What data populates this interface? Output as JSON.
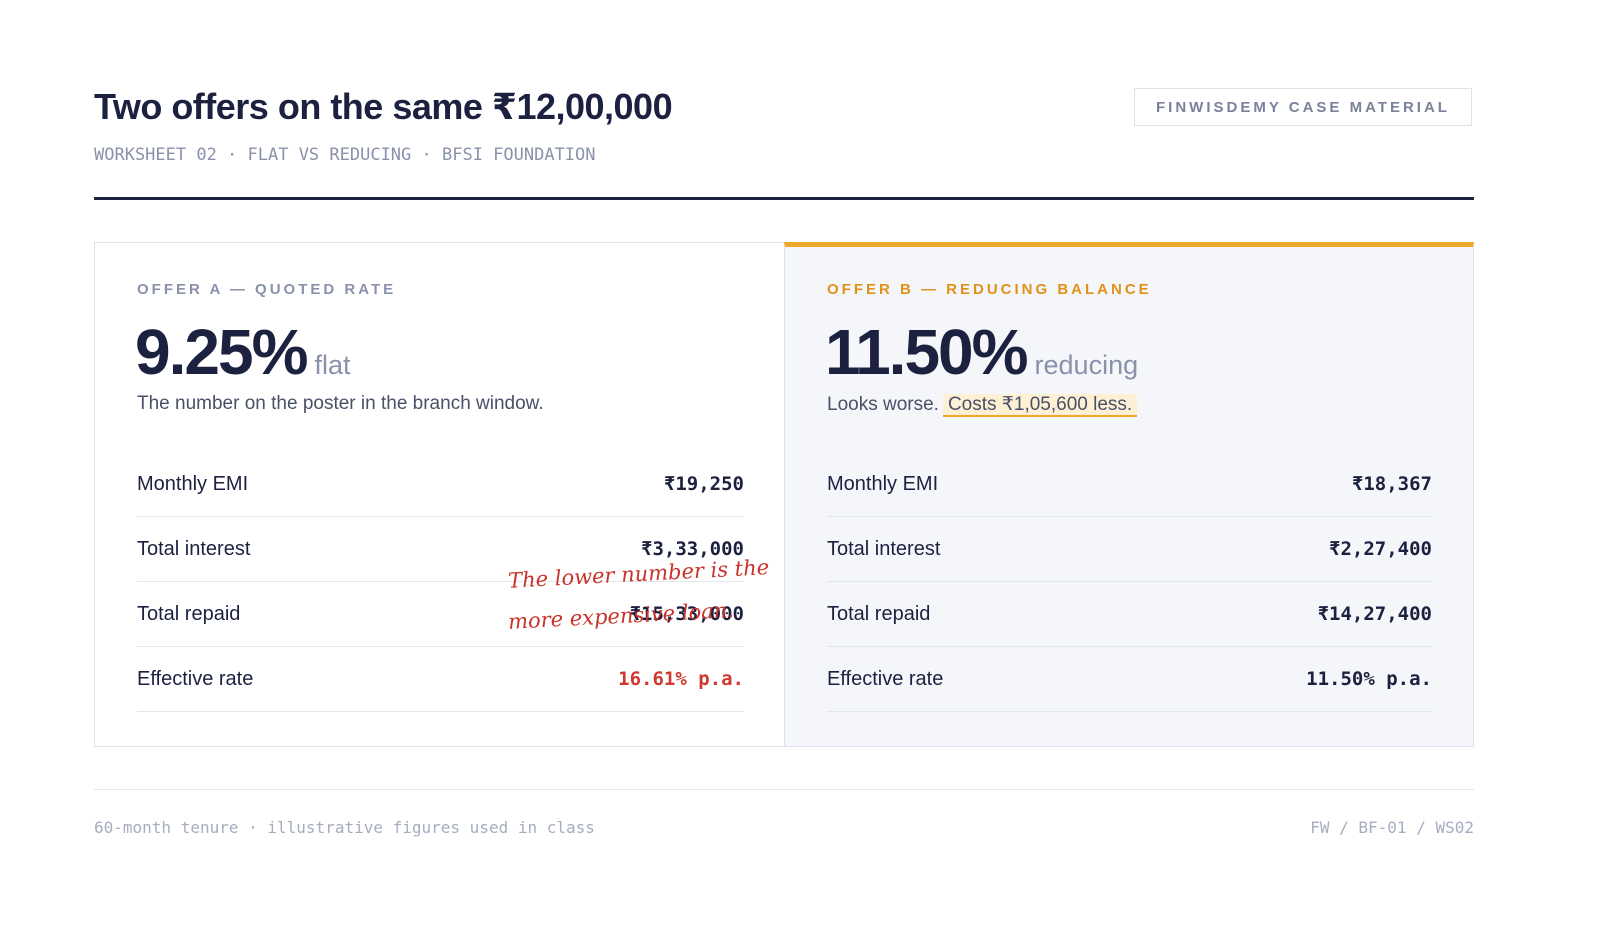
{
  "header": {
    "title": "Two offers on the same ₹12,00,000",
    "subtitle": "WORKSHEET 02 · FLAT VS REDUCING · BFSI FOUNDATION",
    "badge": "FINWISDEMY CASE MATERIAL"
  },
  "offers": [
    {
      "label": "OFFER A — QUOTED RATE",
      "rate": "9.25%",
      "rate_unit": "flat",
      "note": "The number on the poster in the branch window.",
      "rows": [
        {
          "label": "Monthly EMI",
          "value": "₹19,250"
        },
        {
          "label": "Total interest",
          "value": "₹3,33,000"
        },
        {
          "label": "Total repaid",
          "value": "₹15,33,000"
        },
        {
          "label": "Effective rate",
          "value": "16.61% p.a."
        }
      ]
    },
    {
      "label": "OFFER B — REDUCING BALANCE",
      "rate": "11.50%",
      "rate_unit": "reducing",
      "note": "Looks worse.",
      "note_highlight": "Costs ₹1,05,600 less.",
      "rows": [
        {
          "label": "Monthly EMI",
          "value": "₹18,367"
        },
        {
          "label": "Total interest",
          "value": "₹2,27,400"
        },
        {
          "label": "Total repaid",
          "value": "₹14,27,400"
        },
        {
          "label": "Effective rate",
          "value": "11.50% p.a."
        }
      ]
    }
  ],
  "annotation": [
    "The lower number is the",
    "more expensive loan."
  ],
  "footer": {
    "left": "60-month tenure · illustrative figures used in class",
    "right": "FW / BF-01 / WS02"
  }
}
